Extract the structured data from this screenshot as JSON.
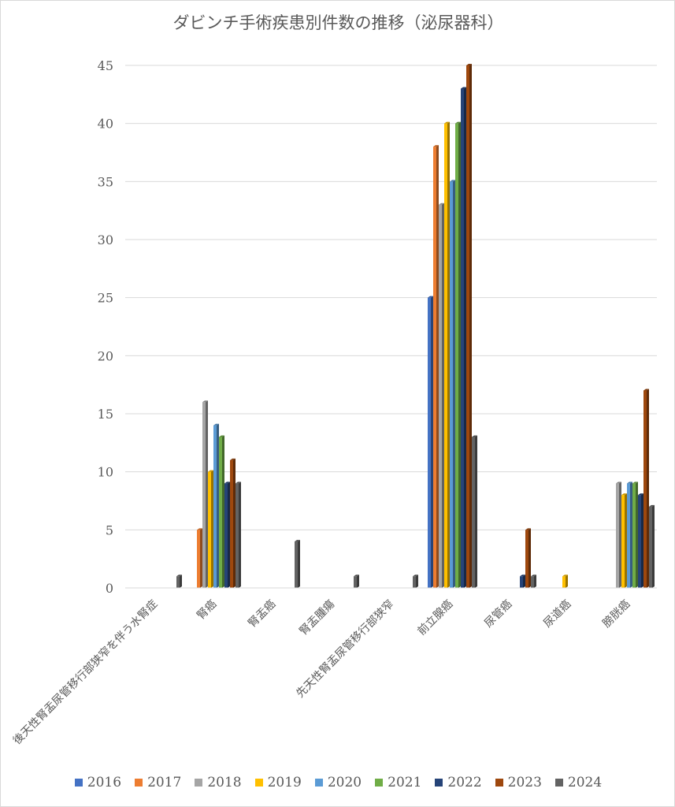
{
  "chart_data": {
    "type": "bar",
    "title": "ダビンチ手術疾患別件数の推移（泌尿器科）",
    "xlabel": "",
    "ylabel": "",
    "ylim": [
      0,
      45
    ],
    "yticks": [
      0,
      5,
      10,
      15,
      20,
      25,
      30,
      35,
      40,
      45
    ],
    "grid": true,
    "legend_position": "bottom",
    "categories": [
      "後天性腎盂尿管移行部狭窄を伴う水腎症",
      "腎癌",
      "腎盂癌",
      "腎盂腫瘍",
      "先天性腎盂尿管移行部狭窄",
      "前立腺癌",
      "尿管癌",
      "尿道癌",
      "膀胱癌"
    ],
    "series": [
      {
        "name": "2016",
        "color": "#4472C4",
        "values": [
          0,
          0,
          0,
          0,
          0,
          25,
          0,
          0,
          0
        ]
      },
      {
        "name": "2017",
        "color": "#ED7D31",
        "values": [
          0,
          5,
          0,
          0,
          0,
          38,
          0,
          0,
          0
        ]
      },
      {
        "name": "2018",
        "color": "#A5A5A5",
        "values": [
          0,
          16,
          0,
          0,
          0,
          33,
          0,
          0,
          9
        ]
      },
      {
        "name": "2019",
        "color": "#FFC000",
        "values": [
          0,
          10,
          0,
          0,
          0,
          40,
          0,
          1,
          8
        ]
      },
      {
        "name": "2020",
        "color": "#5B9BD5",
        "values": [
          0,
          14,
          0,
          0,
          0,
          35,
          0,
          0,
          9
        ]
      },
      {
        "name": "2021",
        "color": "#70AD47",
        "values": [
          0,
          13,
          0,
          0,
          0,
          40,
          0,
          0,
          9
        ]
      },
      {
        "name": "2022",
        "color": "#264478",
        "values": [
          0,
          9,
          0,
          0,
          0,
          43,
          1,
          0,
          8
        ]
      },
      {
        "name": "2023",
        "color": "#9E480E",
        "values": [
          0,
          11,
          0,
          0,
          0,
          45,
          5,
          0,
          17
        ]
      },
      {
        "name": "2024",
        "color": "#636363",
        "values": [
          1,
          9,
          4,
          1,
          1,
          13,
          1,
          0,
          7
        ]
      }
    ]
  }
}
